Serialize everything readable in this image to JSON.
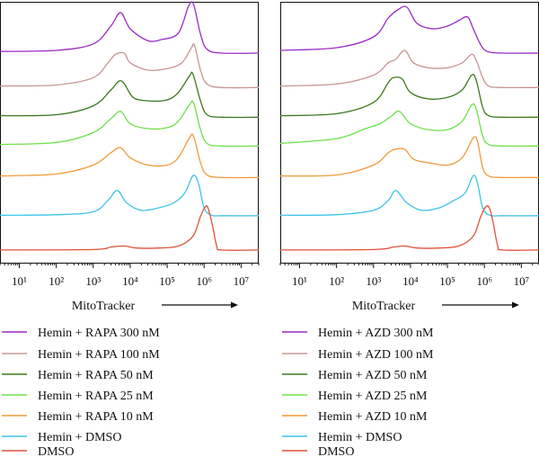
{
  "chart_data": [
    {
      "type": "line",
      "xscale": "log",
      "xlim": [
        3,
        30000000
      ],
      "xticks": [
        "10¹",
        "10²",
        "10³",
        "10⁴",
        "10⁵",
        "10⁶",
        "10⁷"
      ],
      "xlabel": "MitoTracker",
      "grid": false,
      "legend_position": "below",
      "series": [
        {
          "name": "Hemin + RAPA 300 nM",
          "color": "#9a2bc4",
          "x": [
            3,
            100,
            1000,
            3000,
            5500,
            10000,
            30000,
            70000,
            200000,
            380000,
            520000,
            800000,
            1200000,
            3000000,
            30000000
          ],
          "y": [
            0.08,
            0.1,
            0.22,
            0.55,
            0.8,
            0.5,
            0.28,
            0.3,
            0.42,
            0.92,
            0.95,
            0.4,
            0.12,
            0.05,
            0.05
          ]
        },
        {
          "name": "Hemin + RAPA 100 nM",
          "color": "#c79590",
          "x": [
            3,
            100,
            1000,
            2500,
            4000,
            7000,
            10000,
            30000,
            100000,
            250000,
            450000,
            550000,
            800000,
            1200000,
            3000000,
            30000000
          ],
          "y": [
            0.08,
            0.1,
            0.25,
            0.55,
            0.72,
            0.74,
            0.55,
            0.4,
            0.43,
            0.55,
            0.85,
            0.9,
            0.4,
            0.12,
            0.05,
            0.05
          ]
        },
        {
          "name": "Hemin + RAPA 50 nM",
          "color": "#3b7a1e",
          "x": [
            3,
            100,
            1000,
            3000,
            5000,
            7000,
            12000,
            30000,
            100000,
            200000,
            400000,
            500000,
            800000,
            1200000,
            3000000,
            30000000
          ],
          "y": [
            0.08,
            0.1,
            0.28,
            0.6,
            0.78,
            0.72,
            0.45,
            0.38,
            0.4,
            0.55,
            0.88,
            0.92,
            0.38,
            0.1,
            0.05,
            0.05
          ]
        },
        {
          "name": "Hemin + RAPA 25 nM",
          "color": "#6ee04a",
          "x": [
            3,
            100,
            1000,
            3000,
            5500,
            10000,
            30000,
            100000,
            200000,
            400000,
            520000,
            800000,
            1200000,
            3000000,
            30000000
          ],
          "y": [
            0.08,
            0.12,
            0.32,
            0.6,
            0.75,
            0.5,
            0.4,
            0.42,
            0.55,
            0.88,
            0.92,
            0.38,
            0.1,
            0.05,
            0.05
          ]
        },
        {
          "name": "Hemin + RAPA 10 nM",
          "color": "#f09a3a",
          "x": [
            3,
            100,
            1000,
            3000,
            5500,
            10000,
            30000,
            100000,
            200000,
            400000,
            520000,
            800000,
            1200000,
            3000000,
            30000000
          ],
          "y": [
            0.08,
            0.12,
            0.3,
            0.55,
            0.65,
            0.45,
            0.3,
            0.3,
            0.45,
            0.85,
            0.88,
            0.35,
            0.1,
            0.05,
            0.05
          ]
        },
        {
          "name": "Hemin + DMSO",
          "color": "#3ec3e8",
          "x": [
            3,
            100,
            1000,
            2500,
            4500,
            8000,
            20000,
            60000,
            150000,
            300000,
            500000,
            700000,
            1000000,
            1600000,
            3000000,
            30000000
          ],
          "y": [
            0.05,
            0.06,
            0.12,
            0.35,
            0.55,
            0.3,
            0.15,
            0.2,
            0.3,
            0.5,
            0.85,
            0.7,
            0.2,
            0.05,
            0.04,
            0.04
          ]
        },
        {
          "name": "DMSO",
          "color": "#e0513a",
          "x": [
            3,
            1000,
            3000,
            7000,
            15000,
            60000,
            200000,
            500000,
            800000,
            1100000,
            1300000,
            1700000,
            2200000,
            3000000,
            30000000
          ],
          "y": [
            0.02,
            0.03,
            0.08,
            0.1,
            0.06,
            0.06,
            0.1,
            0.3,
            0.7,
            0.9,
            0.85,
            0.5,
            0.1,
            0.02,
            0.02
          ]
        }
      ]
    },
    {
      "type": "line",
      "xscale": "log",
      "xlim": [
        3,
        30000000
      ],
      "xticks": [
        "10¹",
        "10²",
        "10³",
        "10⁴",
        "10⁵",
        "10⁶",
        "10⁷"
      ],
      "xlabel": "MitoTracker",
      "grid": false,
      "legend_position": "below",
      "series": [
        {
          "name": "Hemin + AZD 300 nM",
          "color": "#9a2bc4",
          "x": [
            3,
            100,
            1000,
            2500,
            4500,
            8000,
            15000,
            40000,
            100000,
            200000,
            350000,
            500000,
            800000,
            1200000,
            3000000,
            30000000
          ],
          "y": [
            0.1,
            0.15,
            0.35,
            0.7,
            0.85,
            0.9,
            0.6,
            0.5,
            0.55,
            0.65,
            0.72,
            0.5,
            0.2,
            0.08,
            0.05,
            0.05
          ]
        },
        {
          "name": "Hemin + AZD 100 nM",
          "color": "#c79590",
          "x": [
            3,
            100,
            1000,
            2500,
            4000,
            7000,
            12000,
            30000,
            100000,
            250000,
            450000,
            600000,
            900000,
            1300000,
            3000000,
            30000000
          ],
          "y": [
            0.08,
            0.12,
            0.3,
            0.55,
            0.62,
            0.8,
            0.55,
            0.45,
            0.45,
            0.55,
            0.72,
            0.6,
            0.25,
            0.08,
            0.05,
            0.05
          ]
        },
        {
          "name": "Hemin + AZD 50 nM",
          "color": "#3b7a1e",
          "x": [
            3,
            100,
            1000,
            2500,
            3500,
            6000,
            10000,
            30000,
            100000,
            250000,
            450000,
            600000,
            900000,
            1300000,
            3000000,
            30000000
          ],
          "y": [
            0.08,
            0.12,
            0.35,
            0.75,
            0.85,
            0.82,
            0.55,
            0.42,
            0.45,
            0.6,
            0.9,
            0.8,
            0.25,
            0.08,
            0.05,
            0.05
          ]
        },
        {
          "name": "Hemin + AZD 25 nM",
          "color": "#6ee04a",
          "x": [
            3,
            100,
            600,
            1500,
            3000,
            5000,
            10000,
            30000,
            100000,
            250000,
            450000,
            600000,
            900000,
            1300000,
            3000000,
            30000000
          ],
          "y": [
            0.1,
            0.2,
            0.4,
            0.5,
            0.65,
            0.75,
            0.5,
            0.38,
            0.38,
            0.55,
            0.88,
            0.8,
            0.25,
            0.08,
            0.05,
            0.05
          ]
        },
        {
          "name": "Hemin + AZD 10 nM",
          "color": "#f09a3a",
          "x": [
            3,
            100,
            1000,
            2500,
            4000,
            7000,
            12000,
            30000,
            100000,
            250000,
            500000,
            650000,
            900000,
            1300000,
            3000000,
            30000000
          ],
          "y": [
            0.08,
            0.1,
            0.3,
            0.55,
            0.62,
            0.62,
            0.42,
            0.35,
            0.3,
            0.45,
            0.85,
            0.78,
            0.25,
            0.08,
            0.05,
            0.05
          ]
        },
        {
          "name": "Hemin + DMSO",
          "color": "#3ec3e8",
          "x": [
            3,
            100,
            1000,
            2500,
            4000,
            8000,
            20000,
            60000,
            150000,
            300000,
            500000,
            650000,
            900000,
            1400000,
            3000000,
            30000000
          ],
          "y": [
            0.05,
            0.06,
            0.15,
            0.35,
            0.55,
            0.3,
            0.15,
            0.2,
            0.35,
            0.5,
            0.85,
            0.7,
            0.2,
            0.05,
            0.04,
            0.04
          ]
        },
        {
          "name": "DMSO",
          "color": "#e0513a",
          "x": [
            3,
            1000,
            3500,
            7000,
            15000,
            60000,
            200000,
            500000,
            800000,
            1100000,
            1400000,
            1800000,
            2300000,
            3000000,
            30000000
          ],
          "y": [
            0.02,
            0.03,
            0.08,
            0.1,
            0.06,
            0.06,
            0.1,
            0.3,
            0.7,
            0.9,
            0.85,
            0.5,
            0.1,
            0.02,
            0.02
          ]
        }
      ]
    }
  ]
}
